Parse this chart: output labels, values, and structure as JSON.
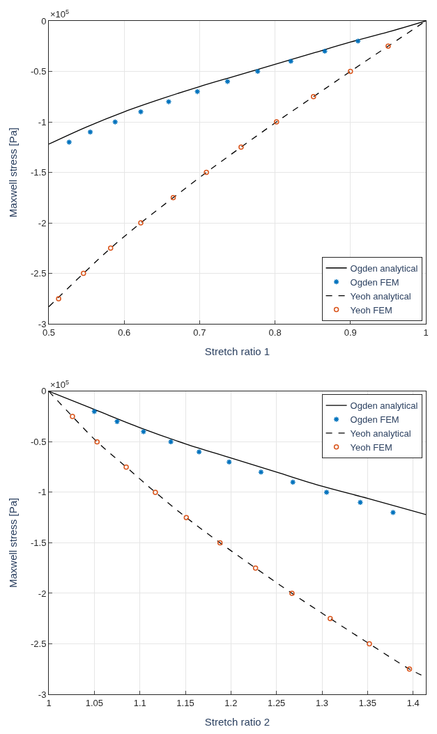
{
  "chart_data": [
    {
      "type": "line",
      "xlabel": "Stretch ratio 1",
      "ylabel": "Maxwell stress [Pa]",
      "annotations": [
        "×10$^{5}$"
      ],
      "xlim": [
        0.5,
        1
      ],
      "ylim": [
        -3,
        0
      ],
      "xticks": [
        0.5,
        0.6,
        0.7,
        0.8,
        0.9,
        1
      ],
      "yticks": [
        -3,
        -2.5,
        -2,
        -1.5,
        -1,
        -0.5,
        0
      ],
      "grid": true,
      "legend": "bottom right",
      "series": [
        {
          "name": "Ogden analytical",
          "line_style": "solid",
          "marker": "none",
          "color": "#000000",
          "x": [
            0.5,
            0.55,
            0.6,
            0.65,
            0.7,
            0.75,
            0.8,
            0.85,
            0.9,
            0.95,
            1
          ],
          "values": [
            -1.22,
            -1.05,
            -0.9,
            -0.77,
            -0.65,
            -0.54,
            -0.43,
            -0.32,
            -0.21,
            -0.11,
            0
          ]
        },
        {
          "name": "Ogden FEM",
          "type": "scatter",
          "marker": "cross",
          "color": "#0072bd",
          "x": [
            0.527,
            0.555,
            0.588,
            0.622,
            0.659,
            0.697,
            0.737,
            0.777,
            0.821,
            0.866,
            0.91
          ],
          "values": [
            -1.2,
            -1.1,
            -1.0,
            -0.9,
            -0.8,
            -0.7,
            -0.6,
            -0.5,
            -0.4,
            -0.3,
            -0.2
          ]
        },
        {
          "name": "Yeoh analytical",
          "line_style": "dashed",
          "marker": "none",
          "color": "#000000",
          "x": [
            0.5,
            0.546,
            0.582,
            0.622,
            0.665,
            0.709,
            0.755,
            0.802,
            0.851,
            0.9,
            0.95,
            1
          ],
          "values": [
            -2.83,
            -2.5,
            -2.25,
            -2.0,
            -1.75,
            -1.5,
            -1.25,
            -1.0,
            -0.75,
            -0.5,
            -0.25,
            0
          ]
        },
        {
          "name": "Yeoh FEM",
          "type": "scatter",
          "marker": "circle",
          "color": "#d95319",
          "x": [
            0.513,
            0.546,
            0.582,
            0.622,
            0.665,
            0.709,
            0.755,
            0.802,
            0.851,
            0.9,
            0.95
          ],
          "values": [
            -2.75,
            -2.5,
            -2.25,
            -2.0,
            -1.75,
            -1.5,
            -1.25,
            -1.0,
            -0.75,
            -0.5,
            -0.25
          ]
        }
      ]
    },
    {
      "type": "line",
      "xlabel": "Stretch ratio 2",
      "ylabel": "Maxwell stress [Pa]",
      "annotations": [
        "×10$^{5}$"
      ],
      "xlim": [
        1,
        1.414
      ],
      "ylim": [
        -3,
        0
      ],
      "xticks": [
        1,
        1.05,
        1.1,
        1.15,
        1.2,
        1.25,
        1.3,
        1.35,
        1.4
      ],
      "yticks": [
        -3,
        -2.5,
        -2,
        -1.5,
        -1,
        -0.5,
        0
      ],
      "grid": true,
      "legend": "top right",
      "series": [
        {
          "name": "Ogden analytical",
          "line_style": "solid",
          "marker": "none",
          "color": "#000000",
          "x": [
            1,
            1.05,
            1.1,
            1.15,
            1.2,
            1.25,
            1.3,
            1.35,
            1.414
          ],
          "values": [
            0,
            -0.18,
            -0.36,
            -0.52,
            -0.66,
            -0.8,
            -0.94,
            -1.06,
            -1.22
          ]
        },
        {
          "name": "Ogden FEM",
          "type": "scatter",
          "marker": "cross",
          "color": "#0072bd",
          "x": [
            1.05,
            1.075,
            1.104,
            1.134,
            1.165,
            1.198,
            1.233,
            1.268,
            1.305,
            1.342,
            1.378
          ],
          "values": [
            -0.2,
            -0.3,
            -0.4,
            -0.5,
            -0.6,
            -0.7,
            -0.8,
            -0.9,
            -1.0,
            -1.1,
            -1.2
          ]
        },
        {
          "name": "Yeoh analytical",
          "line_style": "dashed",
          "marker": "none",
          "color": "#000000",
          "x": [
            1,
            1.026,
            1.053,
            1.085,
            1.117,
            1.151,
            1.188,
            1.227,
            1.267,
            1.309,
            1.352,
            1.396,
            1.414
          ],
          "values": [
            0,
            -0.25,
            -0.5,
            -0.75,
            -1.0,
            -1.25,
            -1.5,
            -1.75,
            -2.0,
            -2.25,
            -2.5,
            -2.75,
            -2.83
          ]
        },
        {
          "name": "Yeoh FEM",
          "type": "scatter",
          "marker": "circle",
          "color": "#d95319",
          "x": [
            1.026,
            1.053,
            1.085,
            1.117,
            1.151,
            1.188,
            1.227,
            1.267,
            1.309,
            1.352,
            1.396
          ],
          "values": [
            -0.25,
            -0.5,
            -0.75,
            -1.0,
            -1.25,
            -1.5,
            -1.75,
            -2.0,
            -2.25,
            -2.5,
            -2.75
          ]
        }
      ]
    }
  ]
}
